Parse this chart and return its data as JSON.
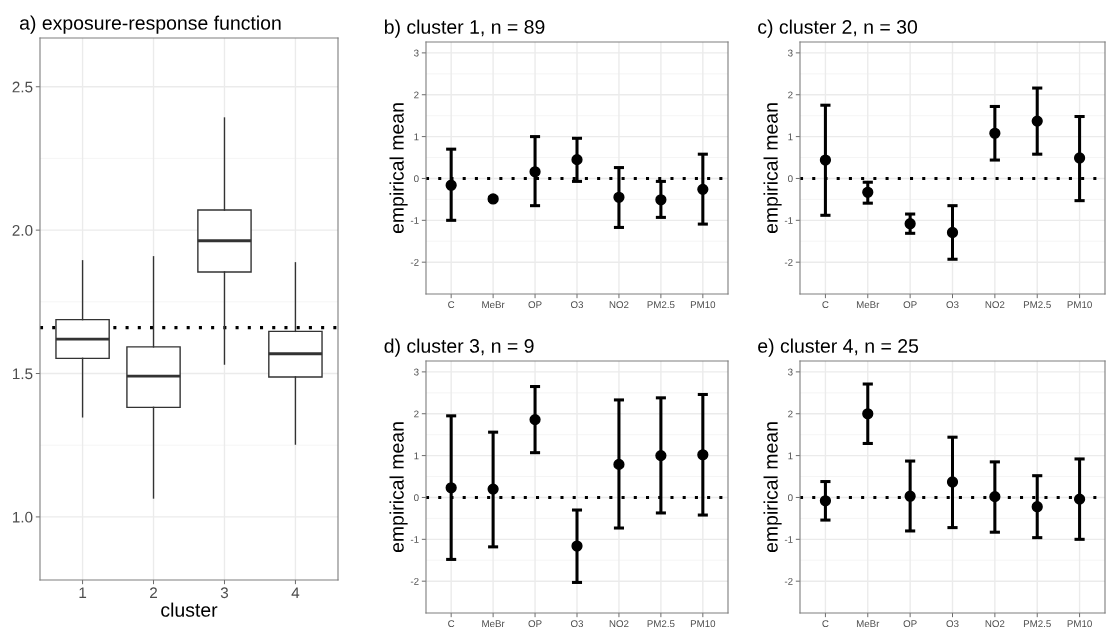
{
  "chart_data": [
    {
      "type": "box",
      "title": "a) exposure-response function",
      "xlabel": "cluster",
      "categories": [
        "1",
        "2",
        "3",
        "4"
      ],
      "color": "#333333",
      "boxes": [
        {
          "low": 1.349,
          "q1": 1.553,
          "median": 1.62,
          "q3": 1.688,
          "high": 1.893
        },
        {
          "low": 1.066,
          "q1": 1.382,
          "median": 1.491,
          "q3": 1.593,
          "high": 1.907
        },
        {
          "low": 1.533,
          "q1": 1.854,
          "median": 1.963,
          "q3": 2.07,
          "high": 2.391
        },
        {
          "low": 1.254,
          "q1": 1.488,
          "median": 1.569,
          "q3": 1.647,
          "high": 1.886
        }
      ],
      "ylim": [
        0.78,
        2.67
      ],
      "yticks": [
        {
          "value": 1,
          "label": "1.0"
        },
        {
          "value": 1.5,
          "label": "1.5"
        },
        {
          "value": 2,
          "label": "2.0"
        },
        {
          "value": 2.5,
          "label": "2.5"
        }
      ],
      "ref_lines": [
        {
          "axis": "y",
          "value": 1.66,
          "line_style": "dotted",
          "color": "#000000"
        }
      ],
      "grid": true
    },
    {
      "type": "scatter",
      "title": "b) cluster 1, n = 89",
      "ylabel": "empirical mean",
      "categories": [
        "C",
        "MeBr",
        "OP",
        "O3",
        "NO2",
        "PM2.5",
        "PM10"
      ],
      "color": "#000000",
      "marker": "circle",
      "values": [
        -0.16,
        -0.49,
        0.16,
        0.45,
        -0.45,
        -0.51,
        -0.26
      ],
      "errors": [
        [
          -1.0,
          0.7
        ],
        [
          -0.52,
          -0.45
        ],
        [
          -0.65,
          1.0
        ],
        [
          -0.07,
          0.96
        ],
        [
          -1.17,
          0.26
        ],
        [
          -0.93,
          -0.07
        ],
        [
          -1.09,
          0.58
        ]
      ],
      "ylim": [
        -2.76,
        3.26
      ],
      "yticks": [
        -2,
        -1,
        0,
        1,
        2,
        3
      ],
      "ref_lines": [
        {
          "axis": "y",
          "value": 0,
          "line_style": "dotted",
          "color": "#000000"
        }
      ],
      "grid": true
    },
    {
      "type": "scatter",
      "title": "c) cluster 2, n = 30",
      "ylabel": "empirical mean",
      "categories": [
        "C",
        "MeBr",
        "OP",
        "O3",
        "NO2",
        "PM2.5",
        "PM10"
      ],
      "color": "#000000",
      "marker": "circle",
      "values": [
        0.44,
        -0.33,
        -1.08,
        -1.29,
        1.08,
        1.37,
        0.49
      ],
      "errors": [
        [
          -0.88,
          1.75
        ],
        [
          -0.59,
          -0.09
        ],
        [
          -1.31,
          -0.85
        ],
        [
          -1.93,
          -0.65
        ],
        [
          0.44,
          1.72
        ],
        [
          0.58,
          2.16
        ],
        [
          -0.53,
          1.48
        ]
      ],
      "ylim": [
        -2.76,
        3.26
      ],
      "yticks": [
        -2,
        -1,
        0,
        1,
        2,
        3
      ],
      "ref_lines": [
        {
          "axis": "y",
          "value": 0,
          "line_style": "dotted",
          "color": "#000000"
        }
      ],
      "grid": true
    },
    {
      "type": "scatter",
      "title": "d) cluster 3, n = 9",
      "ylabel": "empirical mean",
      "categories": [
        "C",
        "MeBr",
        "OP",
        "O3",
        "NO2",
        "PM2.5",
        "PM10"
      ],
      "color": "#000000",
      "marker": "circle",
      "values": [
        0.23,
        0.2,
        1.86,
        -1.16,
        0.79,
        1.0,
        1.02
      ],
      "errors": [
        [
          -1.48,
          1.95
        ],
        [
          -1.18,
          1.56
        ],
        [
          1.07,
          2.65
        ],
        [
          -2.03,
          -0.3
        ],
        [
          -0.73,
          2.33
        ],
        [
          -0.37,
          2.38
        ],
        [
          -0.42,
          2.46
        ]
      ],
      "ylim": [
        -2.76,
        3.26
      ],
      "yticks": [
        -2,
        -1,
        0,
        1,
        2,
        3
      ],
      "ref_lines": [
        {
          "axis": "y",
          "value": 0,
          "line_style": "dotted",
          "color": "#000000"
        }
      ],
      "grid": true
    },
    {
      "type": "scatter",
      "title": "e) cluster 4, n = 25",
      "ylabel": "empirical mean",
      "categories": [
        "C",
        "MeBr",
        "OP",
        "O3",
        "NO2",
        "PM2.5",
        "PM10"
      ],
      "color": "#000000",
      "marker": "circle",
      "values": [
        -0.08,
        2.0,
        0.03,
        0.37,
        0.02,
        -0.22,
        -0.04
      ],
      "errors": [
        [
          -0.54,
          0.38
        ],
        [
          1.29,
          2.71
        ],
        [
          -0.8,
          0.87
        ],
        [
          -0.72,
          1.44
        ],
        [
          -0.83,
          0.85
        ],
        [
          -0.96,
          0.52
        ],
        [
          -1.0,
          0.92
        ]
      ],
      "ylim": [
        -2.76,
        3.26
      ],
      "yticks": [
        -2,
        -1,
        0,
        1,
        2,
        3
      ],
      "ref_lines": [
        {
          "axis": "y",
          "value": 0,
          "line_style": "dotted",
          "color": "#000000"
        }
      ],
      "grid": true
    }
  ]
}
